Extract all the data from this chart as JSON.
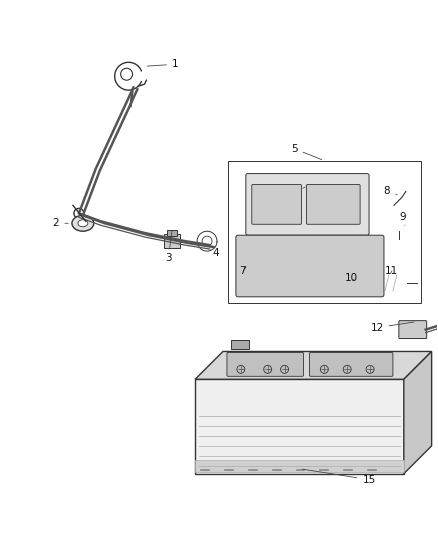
{
  "background_color": "#ffffff",
  "fig_width": 4.38,
  "fig_height": 5.33,
  "dpi": 100,
  "wire_color": "#555555",
  "line_color": "#333333",
  "part_fill": "#e0e0e0",
  "part_dark": "#aaaaaa",
  "part_mid": "#cccccc"
}
